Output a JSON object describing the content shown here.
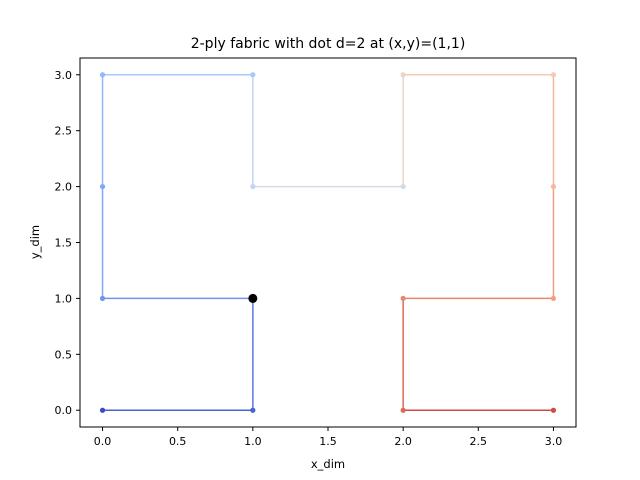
{
  "chart_data": {
    "type": "line",
    "title": "2-ply fabric with dot d=2 at (x,y)=(1,1)",
    "xlabel": "x_dim",
    "ylabel": "y_dim",
    "xlim": [
      -0.15,
      3.15
    ],
    "ylim": [
      -0.15,
      3.15
    ],
    "xticks": [
      "0.0",
      "0.5",
      "1.0",
      "1.5",
      "2.0",
      "2.5",
      "3.0"
    ],
    "yticks": [
      "0.0",
      "0.5",
      "1.0",
      "1.5",
      "2.0",
      "2.5",
      "3.0"
    ],
    "grid": false,
    "path": [
      {
        "x": 0,
        "y": 0,
        "color": "#3b4cc0"
      },
      {
        "x": 1,
        "y": 0,
        "color": "#4a63d3"
      },
      {
        "x": 1,
        "y": 1,
        "color": "#5a78e4"
      },
      {
        "x": 0,
        "y": 1,
        "color": "#6f92f3"
      },
      {
        "x": 0,
        "y": 2,
        "color": "#7ea9fb"
      },
      {
        "x": 0,
        "y": 3,
        "color": "#95b7ff"
      },
      {
        "x": 1,
        "y": 3,
        "color": "#aac7fd"
      },
      {
        "x": 1,
        "y": 2,
        "color": "#c0d4f5"
      },
      {
        "x": 2,
        "y": 2,
        "color": "#d5dbe5"
      },
      {
        "x": 2,
        "y": 3,
        "color": "#e7d6cc"
      },
      {
        "x": 3,
        "y": 3,
        "color": "#f2cbb7"
      },
      {
        "x": 3,
        "y": 2,
        "color": "#f5b89c"
      },
      {
        "x": 3,
        "y": 1,
        "color": "#f2a081"
      },
      {
        "x": 2,
        "y": 1,
        "color": "#ea8669"
      },
      {
        "x": 2,
        "y": 0,
        "color": "#de6a53"
      },
      {
        "x": 3,
        "y": 0,
        "color": "#d24b40"
      }
    ],
    "dot": {
      "x": 1,
      "y": 1,
      "d": 2,
      "color": "#000000"
    }
  }
}
